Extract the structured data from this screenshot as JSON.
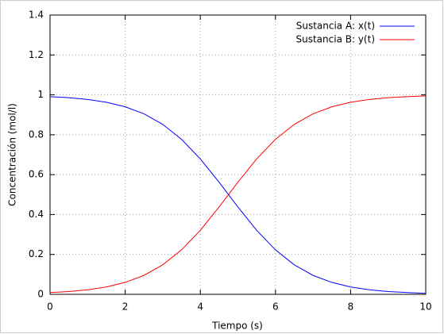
{
  "chart_data": {
    "type": "line",
    "x_label": "Tiempo (s)",
    "y_label": "Concentración (mol/l)",
    "x": [
      0,
      0.5,
      1,
      1.5,
      2,
      2.5,
      3,
      3.5,
      4,
      4.5,
      5,
      5.5,
      6,
      6.5,
      7,
      7.5,
      8,
      8.5,
      9,
      9.5,
      10
    ],
    "series": [
      {
        "name": "Sustancia A: x(t)",
        "color": "#0000ff",
        "values": [
          0.991,
          0.986,
          0.977,
          0.963,
          0.94,
          0.905,
          0.852,
          0.777,
          0.679,
          0.562,
          0.438,
          0.321,
          0.223,
          0.148,
          0.095,
          0.06,
          0.037,
          0.023,
          0.014,
          0.009,
          0.005
        ]
      },
      {
        "name": "Sustancia B: y(t)",
        "color": "#ff0000",
        "values": [
          0.009,
          0.014,
          0.023,
          0.037,
          0.06,
          0.095,
          0.148,
          0.223,
          0.321,
          0.438,
          0.562,
          0.679,
          0.777,
          0.852,
          0.905,
          0.94,
          0.963,
          0.977,
          0.986,
          0.991,
          0.995
        ]
      }
    ],
    "xlim": [
      0,
      10
    ],
    "xticks": [
      0,
      2,
      4,
      6,
      8,
      10
    ],
    "ylim": [
      0,
      1.4
    ],
    "yticks": [
      0,
      0.2,
      0.4,
      0.6,
      0.8,
      1,
      1.2,
      1.4
    ],
    "grid": true,
    "legend": "top-right"
  }
}
